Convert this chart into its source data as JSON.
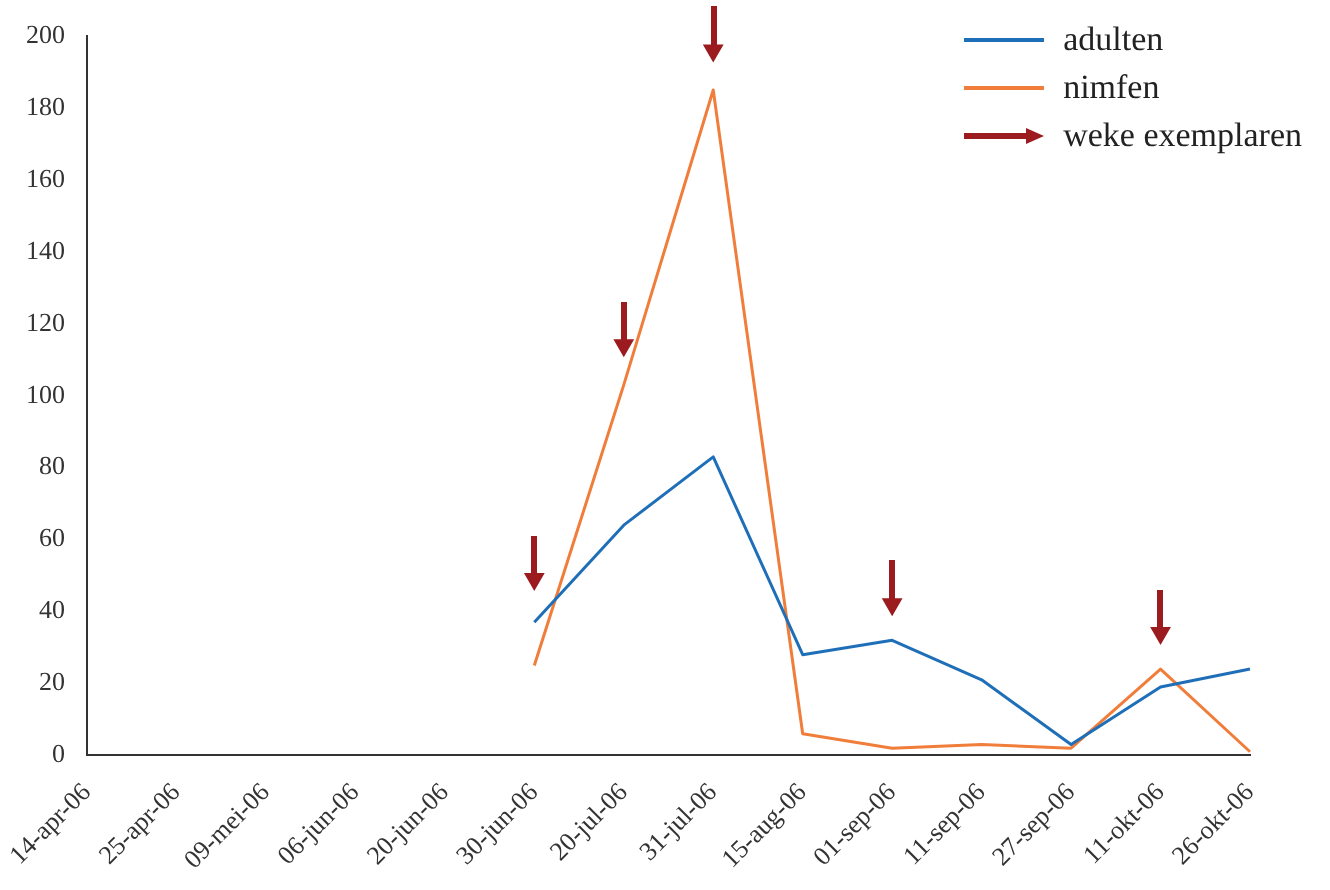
{
  "chart_data": {
    "type": "line",
    "categories": [
      "14-apr-06",
      "25-apr-06",
      "09-mei-06",
      "06-jun-06",
      "20-jun-06",
      "30-jun-06",
      "20-jul-06",
      "31-jul-06",
      "15-aug-06",
      "01-sep-06",
      "11-sep-06",
      "27-sep-06",
      "11-okt-06",
      "26-okt-06"
    ],
    "series": [
      {
        "name": "adulten",
        "color": "#1f6fb8",
        "values": [
          null,
          null,
          null,
          null,
          null,
          37,
          64,
          83,
          28,
          32,
          21,
          3,
          19,
          24
        ]
      },
      {
        "name": "nimfen",
        "color": "#f07d3a",
        "values": [
          null,
          null,
          null,
          null,
          null,
          25,
          103,
          185,
          6,
          2,
          3,
          2,
          24,
          1
        ]
      },
      {
        "name": "weke exemplaren",
        "type": "scatter",
        "marker": "triangle",
        "color": "#9b1b1f",
        "values": [
          null,
          null,
          null,
          null,
          null,
          49,
          114,
          196,
          null,
          42,
          null,
          null,
          34,
          null
        ]
      }
    ],
    "ylim": [
      0,
      200
    ],
    "yticks": [
      0,
      20,
      40,
      60,
      80,
      100,
      120,
      140,
      160,
      180,
      200
    ],
    "grid": false,
    "legend": "top right"
  }
}
